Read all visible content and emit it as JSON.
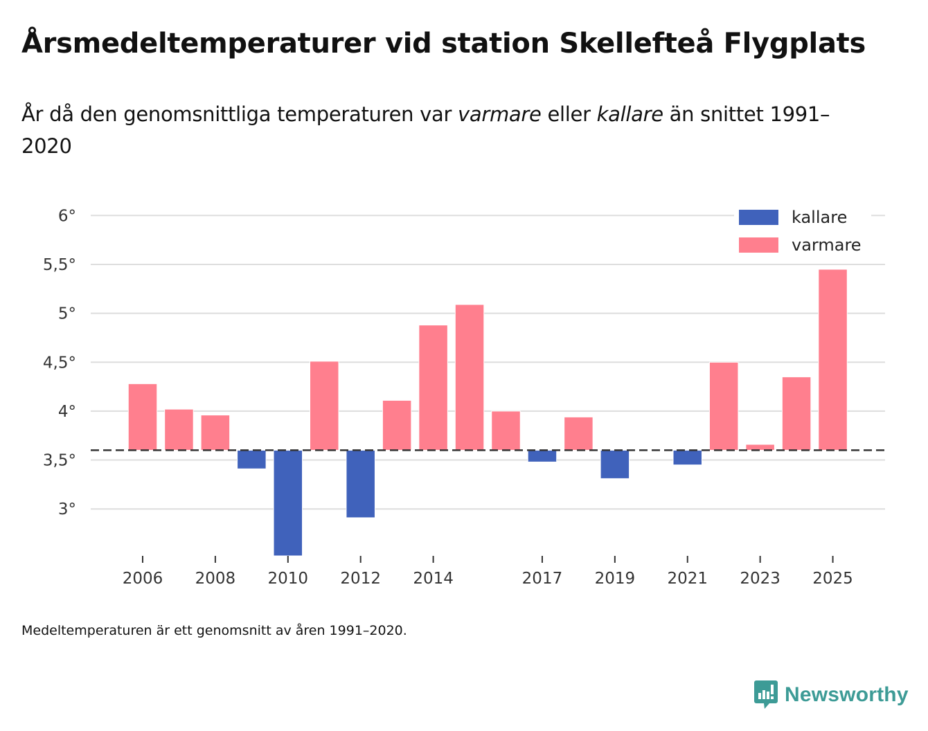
{
  "title": "Årsmedeltemperaturer vid station Skellefteå Flygplats",
  "subtitle": {
    "part1": "År då den genomsnittliga temperaturen var ",
    "em1": "varmare",
    "part2": " eller ",
    "em2": "kallare",
    "part3": " än snittet 1991–2020"
  },
  "footnote": "Medeltemperaturen är ett genomsnitt av åren 1991–2020.",
  "brand": {
    "name": "Newsworthy",
    "color": "#3d9b96",
    "icon": "chart-bubble-icon"
  },
  "colors": {
    "kallare": "#4062bb",
    "varmare": "#ff7f8e",
    "grid": "#dddddd",
    "baseline": "#333333"
  },
  "chart_data": {
    "type": "bar",
    "title": "Årsmedeltemperaturer vid station Skellefteå Flygplats",
    "xlabel": "",
    "ylabel": "",
    "baseline": 3.6,
    "baseline_label": "snittet 1991–2020",
    "ylim": [
      2.52,
      6.0
    ],
    "yticks": [
      3,
      3.5,
      4,
      4.5,
      5,
      5.5,
      6
    ],
    "ytick_labels": [
      "3°",
      "3,5°",
      "4°",
      "4,5°",
      "5°",
      "5,5°",
      "6°"
    ],
    "grid": true,
    "xticks": [
      2006,
      2008,
      2010,
      2012,
      2014,
      2017,
      2019,
      2021,
      2023,
      2025
    ],
    "xtick_labels": [
      "2006",
      "2008",
      "2010",
      "2012",
      "2014",
      "2017",
      "2019",
      "2021",
      "2023",
      "2025"
    ],
    "categories": [
      2006,
      2007,
      2008,
      2009,
      2010,
      2011,
      2012,
      2013,
      2014,
      2015,
      2016,
      2017,
      2018,
      2019,
      2020,
      2021,
      2022,
      2023,
      2024,
      2025
    ],
    "values": [
      4.28,
      4.02,
      3.96,
      3.41,
      2.52,
      4.51,
      2.91,
      4.11,
      4.88,
      5.09,
      4.0,
      3.48,
      3.94,
      3.31,
      null,
      3.45,
      4.5,
      3.66,
      4.35,
      5.45
    ],
    "legend": {
      "placement": "top-right",
      "entries": [
        {
          "name": "kallare",
          "color": "#4062bb"
        },
        {
          "name": "varmare",
          "color": "#ff7f8e"
        }
      ]
    }
  }
}
